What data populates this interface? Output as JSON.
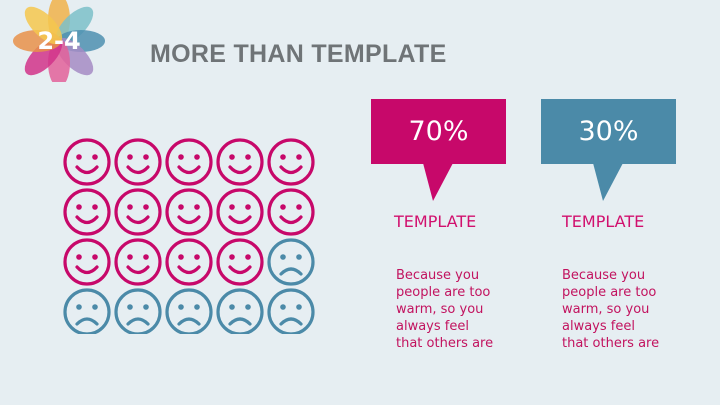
{
  "colors": {
    "background": "#e6eef2",
    "accent_pink": "#c7086a",
    "accent_teal": "#4b8aa8",
    "title_gray": "#6f7477"
  },
  "slide": {
    "section_number": "2-4",
    "title": "MORE THAN TEMPLATE"
  },
  "faces": {
    "total": 20,
    "happy": 14,
    "sad": 6,
    "happy_icon": "smiley-face-icon",
    "sad_icon": "frowning-face-icon"
  },
  "stats": [
    {
      "percent": "70%",
      "heading": "TEMPLATE",
      "body_lines": [
        "Because you",
        "people are too",
        "warm, so you",
        "always feel",
        "that others are"
      ]
    },
    {
      "percent": "30%",
      "heading": "TEMPLATE",
      "body_lines": [
        "Because you",
        "people are too",
        "warm, so you",
        "always feel",
        "that others are"
      ]
    }
  ]
}
